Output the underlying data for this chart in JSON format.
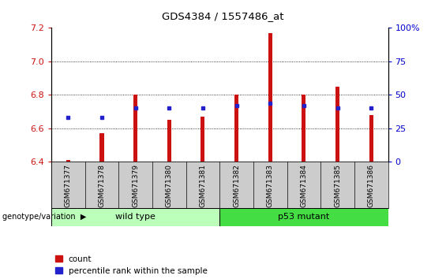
{
  "title": "GDS4384 / 1557486_at",
  "samples": [
    "GSM671377",
    "GSM671378",
    "GSM671379",
    "GSM671380",
    "GSM671381",
    "GSM671382",
    "GSM671383",
    "GSM671384",
    "GSM671385",
    "GSM671386"
  ],
  "count_values": [
    6.41,
    6.57,
    6.8,
    6.65,
    6.67,
    6.8,
    7.17,
    6.8,
    6.85,
    6.68
  ],
  "percentile_values": [
    33,
    33,
    40,
    40,
    40,
    42,
    44,
    42,
    40,
    40
  ],
  "ylim_left": [
    6.4,
    7.2
  ],
  "ylim_right": [
    0,
    100
  ],
  "yticks_left": [
    6.4,
    6.6,
    6.8,
    7.0,
    7.2
  ],
  "yticks_right": [
    0,
    25,
    50,
    75,
    100
  ],
  "bar_color": "#cc1111",
  "dot_color": "#2222cc",
  "base": 6.4,
  "groups": [
    {
      "label": "wild type",
      "start": 0,
      "end": 5,
      "color": "#bbffbb"
    },
    {
      "label": "p53 mutant",
      "start": 5,
      "end": 10,
      "color": "#44dd44"
    }
  ],
  "group_label": "genotype/variation",
  "legend_count_label": "count",
  "legend_pct_label": "percentile rank within the sample",
  "bar_width": 0.12,
  "xlabel_color": "#cc1111",
  "ylabel_right_color": "#0000cc",
  "xlabel_bg_color": "#cccccc"
}
